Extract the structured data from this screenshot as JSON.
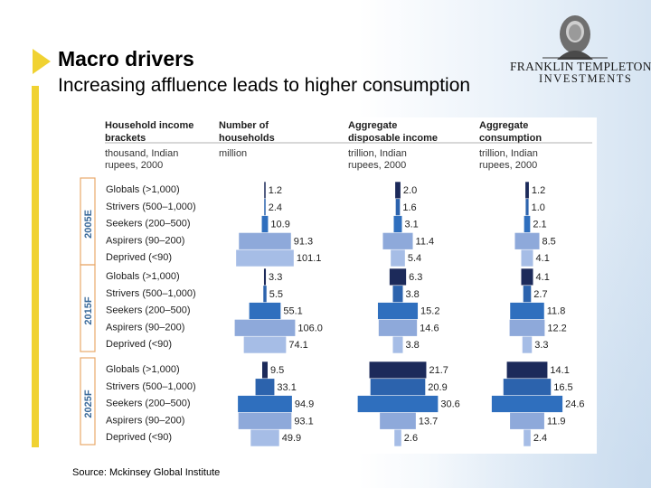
{
  "slide": {
    "title": "Macro drivers",
    "subtitle": "Increasing affluence leads to higher consumption",
    "source": "Source: Mckinsey Global Institute",
    "logo_line1": "FRANKLIN TEMPLETON",
    "logo_line2": "INVESTMENTS"
  },
  "colors": {
    "accent": "#f0d232",
    "globals": "#1c2a5a",
    "strivers": "#2c63ad",
    "seekers": "#2f6fbe",
    "aspirers": "#8ea9da",
    "deprived": "#a6bde6"
  },
  "chart_data": {
    "type": "bar",
    "style": "stacked population pyramids",
    "columns": [
      {
        "header": "Household income brackets",
        "unit": "thousand, Indian rupees, 2000"
      },
      {
        "header": "Number of households",
        "unit": "million"
      },
      {
        "header": "Aggregate disposable income",
        "unit": "trillion, Indian rupees, 2000"
      },
      {
        "header": "Aggregate consumption",
        "unit": "trillion, Indian rupees, 2000"
      }
    ],
    "categories": [
      "Globals (>1,000)",
      "Strivers (500–1,000)",
      "Seekers (200–500)",
      "Aspirers (90–200)",
      "Deprived (<90)"
    ],
    "groups": [
      {
        "name": "2005E",
        "households": [
          1.2,
          2.4,
          10.9,
          91.3,
          101.1
        ],
        "disposable_income": [
          2.0,
          1.6,
          3.1,
          11.4,
          5.4
        ],
        "consumption": [
          1.2,
          1.0,
          2.1,
          8.5,
          4.1
        ]
      },
      {
        "name": "2015F",
        "households": [
          3.3,
          5.5,
          55.1,
          106.0,
          74.1
        ],
        "disposable_income": [
          6.3,
          3.8,
          15.2,
          14.6,
          3.8
        ],
        "consumption": [
          4.1,
          2.7,
          11.8,
          12.2,
          3.3
        ]
      },
      {
        "name": "2025F",
        "households": [
          9.5,
          33.1,
          94.9,
          93.1,
          49.9
        ],
        "disposable_income": [
          21.7,
          20.9,
          30.6,
          13.7,
          2.6
        ],
        "consumption": [
          14.1,
          16.5,
          24.6,
          11.9,
          2.4
        ]
      }
    ]
  }
}
